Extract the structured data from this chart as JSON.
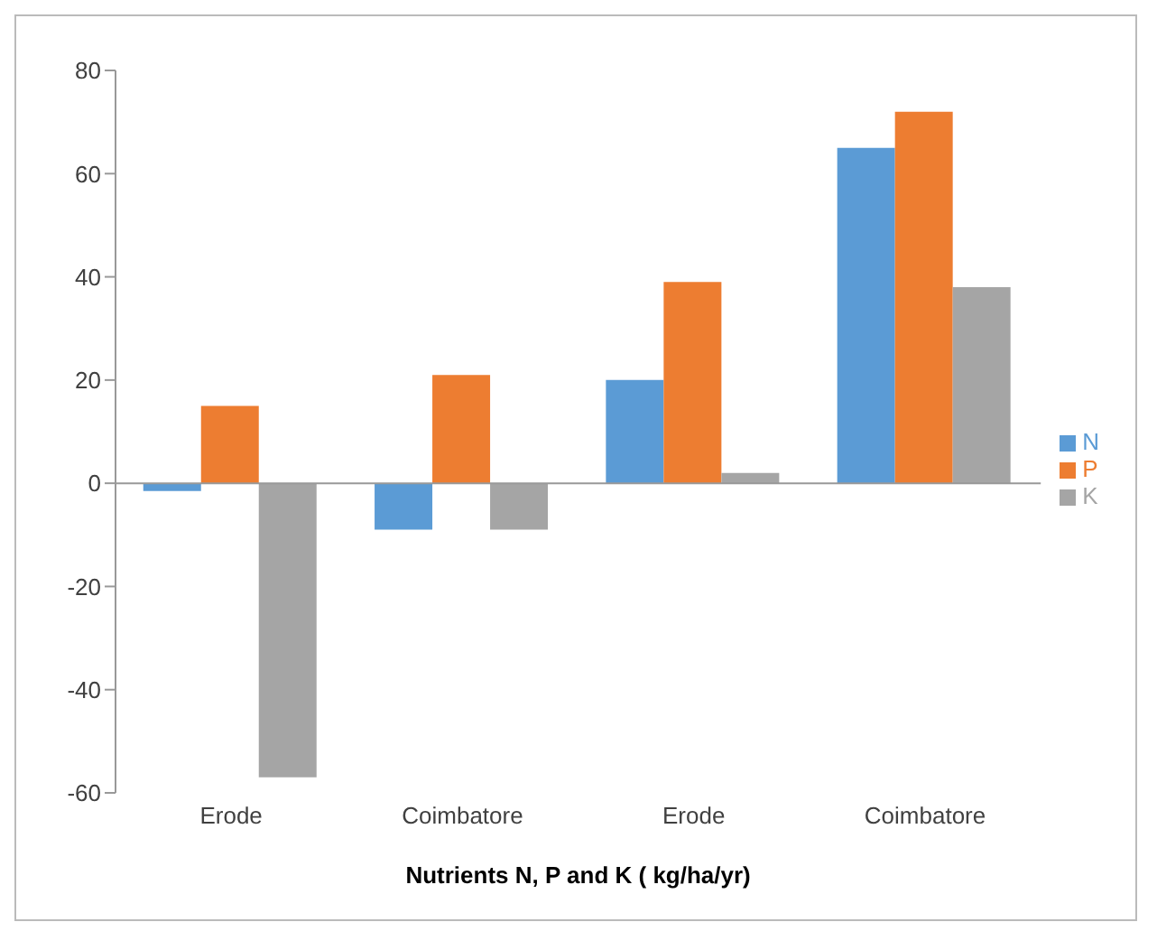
{
  "chart_data": {
    "type": "bar",
    "categories": [
      "Erode",
      "Coimbatore",
      "Erode",
      "Coimbatore"
    ],
    "series": [
      {
        "name": "N",
        "color": "#5b9bd5",
        "values": [
          -1.5,
          -9,
          20,
          65
        ]
      },
      {
        "name": "P",
        "color": "#ed7d31",
        "values": [
          15,
          21,
          39,
          72
        ]
      },
      {
        "name": "K",
        "color": "#a5a5a5",
        "values": [
          -57,
          -9,
          2,
          38
        ]
      }
    ],
    "xlabel": "Nutrients N, P and K ( kg/ha/yr)",
    "ylim": [
      -60,
      80
    ],
    "yticks": [
      -60,
      -40,
      -20,
      0,
      20,
      40,
      60,
      80
    ],
    "legend": "right"
  }
}
